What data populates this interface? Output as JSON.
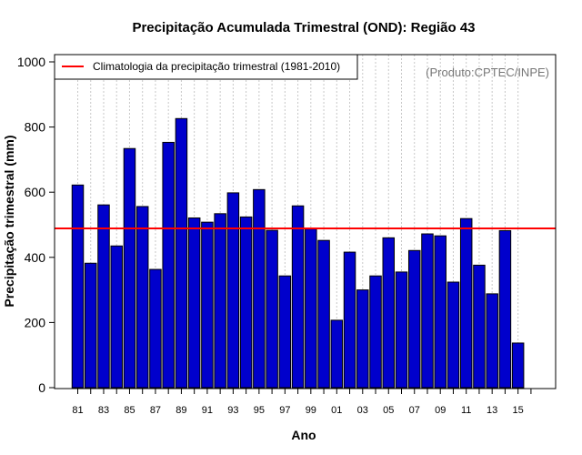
{
  "chart_data": {
    "type": "bar",
    "title": "Precipitação Acumulada Trimestral (OND): Região 43",
    "xlabel": "Ano",
    "ylabel": "Precipitação trimestral (mm)",
    "ylim": [
      0,
      1000
    ],
    "yticks": [
      0,
      200,
      400,
      600,
      800,
      1000
    ],
    "categories": [
      "1981",
      "1982",
      "1983",
      "1984",
      "1985",
      "1986",
      "1987",
      "1988",
      "1989",
      "1990",
      "1991",
      "1992",
      "1993",
      "1994",
      "1995",
      "1996",
      "1997",
      "1998",
      "1999",
      "2000",
      "2001",
      "2002",
      "2003",
      "2004",
      "2005",
      "2006",
      "2007",
      "2008",
      "2009",
      "2010",
      "2011",
      "2012",
      "2013",
      "2014",
      "2015"
    ],
    "xtick_labels": [
      "81",
      "83",
      "85",
      "87",
      "89",
      "91",
      "93",
      "95",
      "97",
      "99",
      "01",
      "03",
      "05",
      "07",
      "09",
      "11",
      "13",
      "15"
    ],
    "values": [
      622,
      382,
      561,
      435,
      734,
      556,
      363,
      753,
      826,
      521,
      508,
      534,
      598,
      524,
      608,
      483,
      343,
      558,
      487,
      452,
      207,
      416,
      300,
      343,
      460,
      355,
      421,
      472,
      466,
      324,
      519,
      376,
      288,
      482,
      137
    ],
    "bar_color": "#0000cc",
    "reference_line": {
      "label": "Climatologia da precipitação trimestral (1981-2010)",
      "value": 489,
      "color": "#ff0000"
    },
    "legend_position": "top-left",
    "source_label": "(Produto:CPTEC/INPE)",
    "grid": "vertical dotted"
  }
}
